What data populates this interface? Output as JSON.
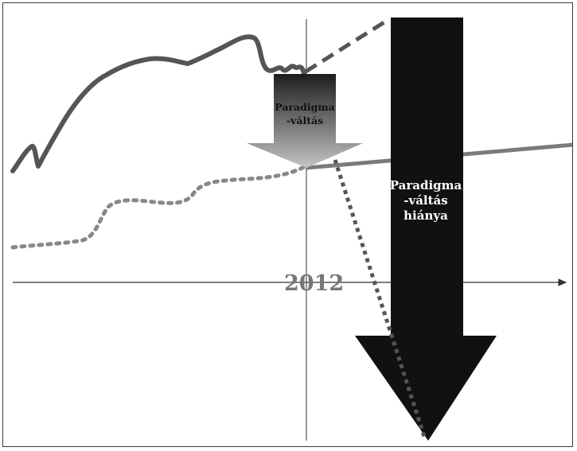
{
  "figure": {
    "axis_year_label": "2012",
    "small_arrow_label": [
      "Paradigma",
      "-váltás"
    ],
    "big_arrow_label": [
      "Paradigma",
      "-váltás",
      "hiánya"
    ]
  },
  "colors": {
    "solid_line": "#555555",
    "dotted_line": "#888888",
    "down_dotted_line": "#555555",
    "big_arrow": "#111111",
    "small_arrow_top": "#1c1c1c",
    "small_arrow_bottom": "#c4c4c4",
    "axis": "#333333",
    "year_label": "#777777"
  }
}
